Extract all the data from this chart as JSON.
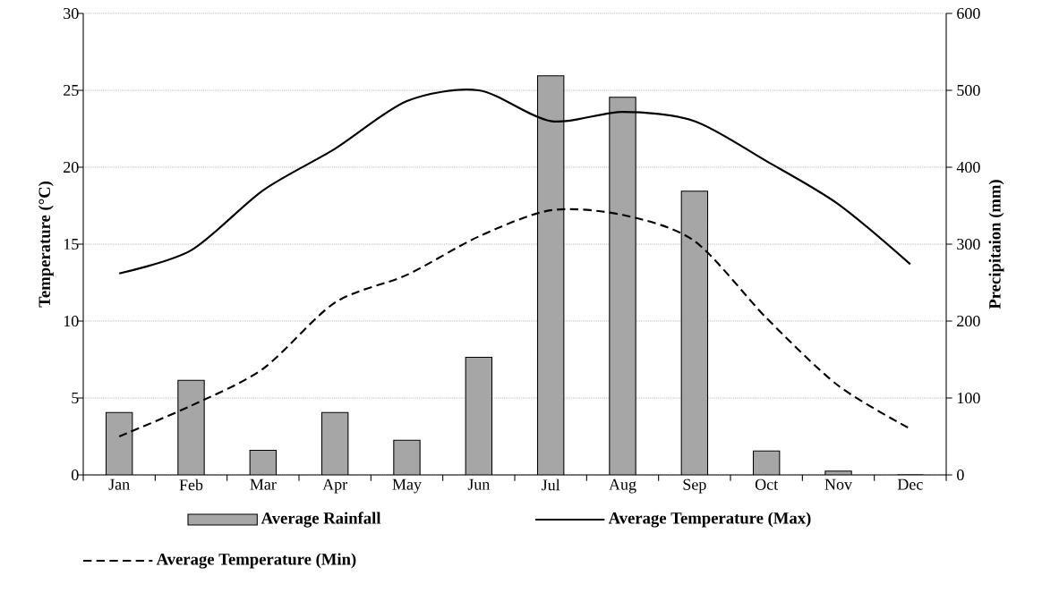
{
  "chart_data": {
    "type": "line",
    "categories": [
      "Jan",
      "Feb",
      "Mar",
      "Apr",
      "May",
      "Jun",
      "Jul",
      "Aug",
      "Sep",
      "Oct",
      "Nov",
      "Dec"
    ],
    "series": [
      {
        "name": "Average Rainfall",
        "type": "bar",
        "axis": "y2",
        "color": "#a6a6a6",
        "values": [
          81,
          123,
          32,
          81,
          45,
          153,
          519,
          491,
          369,
          31,
          5,
          0
        ]
      },
      {
        "name": "Average Temperature (Max)",
        "color": "#000000",
        "line_style": "solid",
        "values": [
          13.1,
          14.6,
          18.5,
          21.2,
          24.3,
          25.0,
          23.0,
          23.6,
          23.0,
          20.4,
          17.6,
          13.7
        ]
      },
      {
        "name": "Average Temperature (Min)",
        "color": "#000000",
        "line_style": "dashed",
        "values": [
          2.5,
          4.5,
          6.9,
          11.2,
          13.0,
          15.5,
          17.2,
          16.9,
          15.2,
          10.2,
          5.8,
          3.0
        ]
      }
    ],
    "ylabel": "Temperature (°C)",
    "y2label": "Precipitaion (mm)",
    "ylim": [
      0,
      30
    ],
    "yticks": [
      0,
      5,
      10,
      15,
      20,
      25,
      30
    ],
    "y2lim": [
      0,
      600
    ],
    "y2ticks": [
      0,
      100,
      200,
      300,
      400,
      500,
      600
    ],
    "grid": "y",
    "legend": "bottom"
  }
}
